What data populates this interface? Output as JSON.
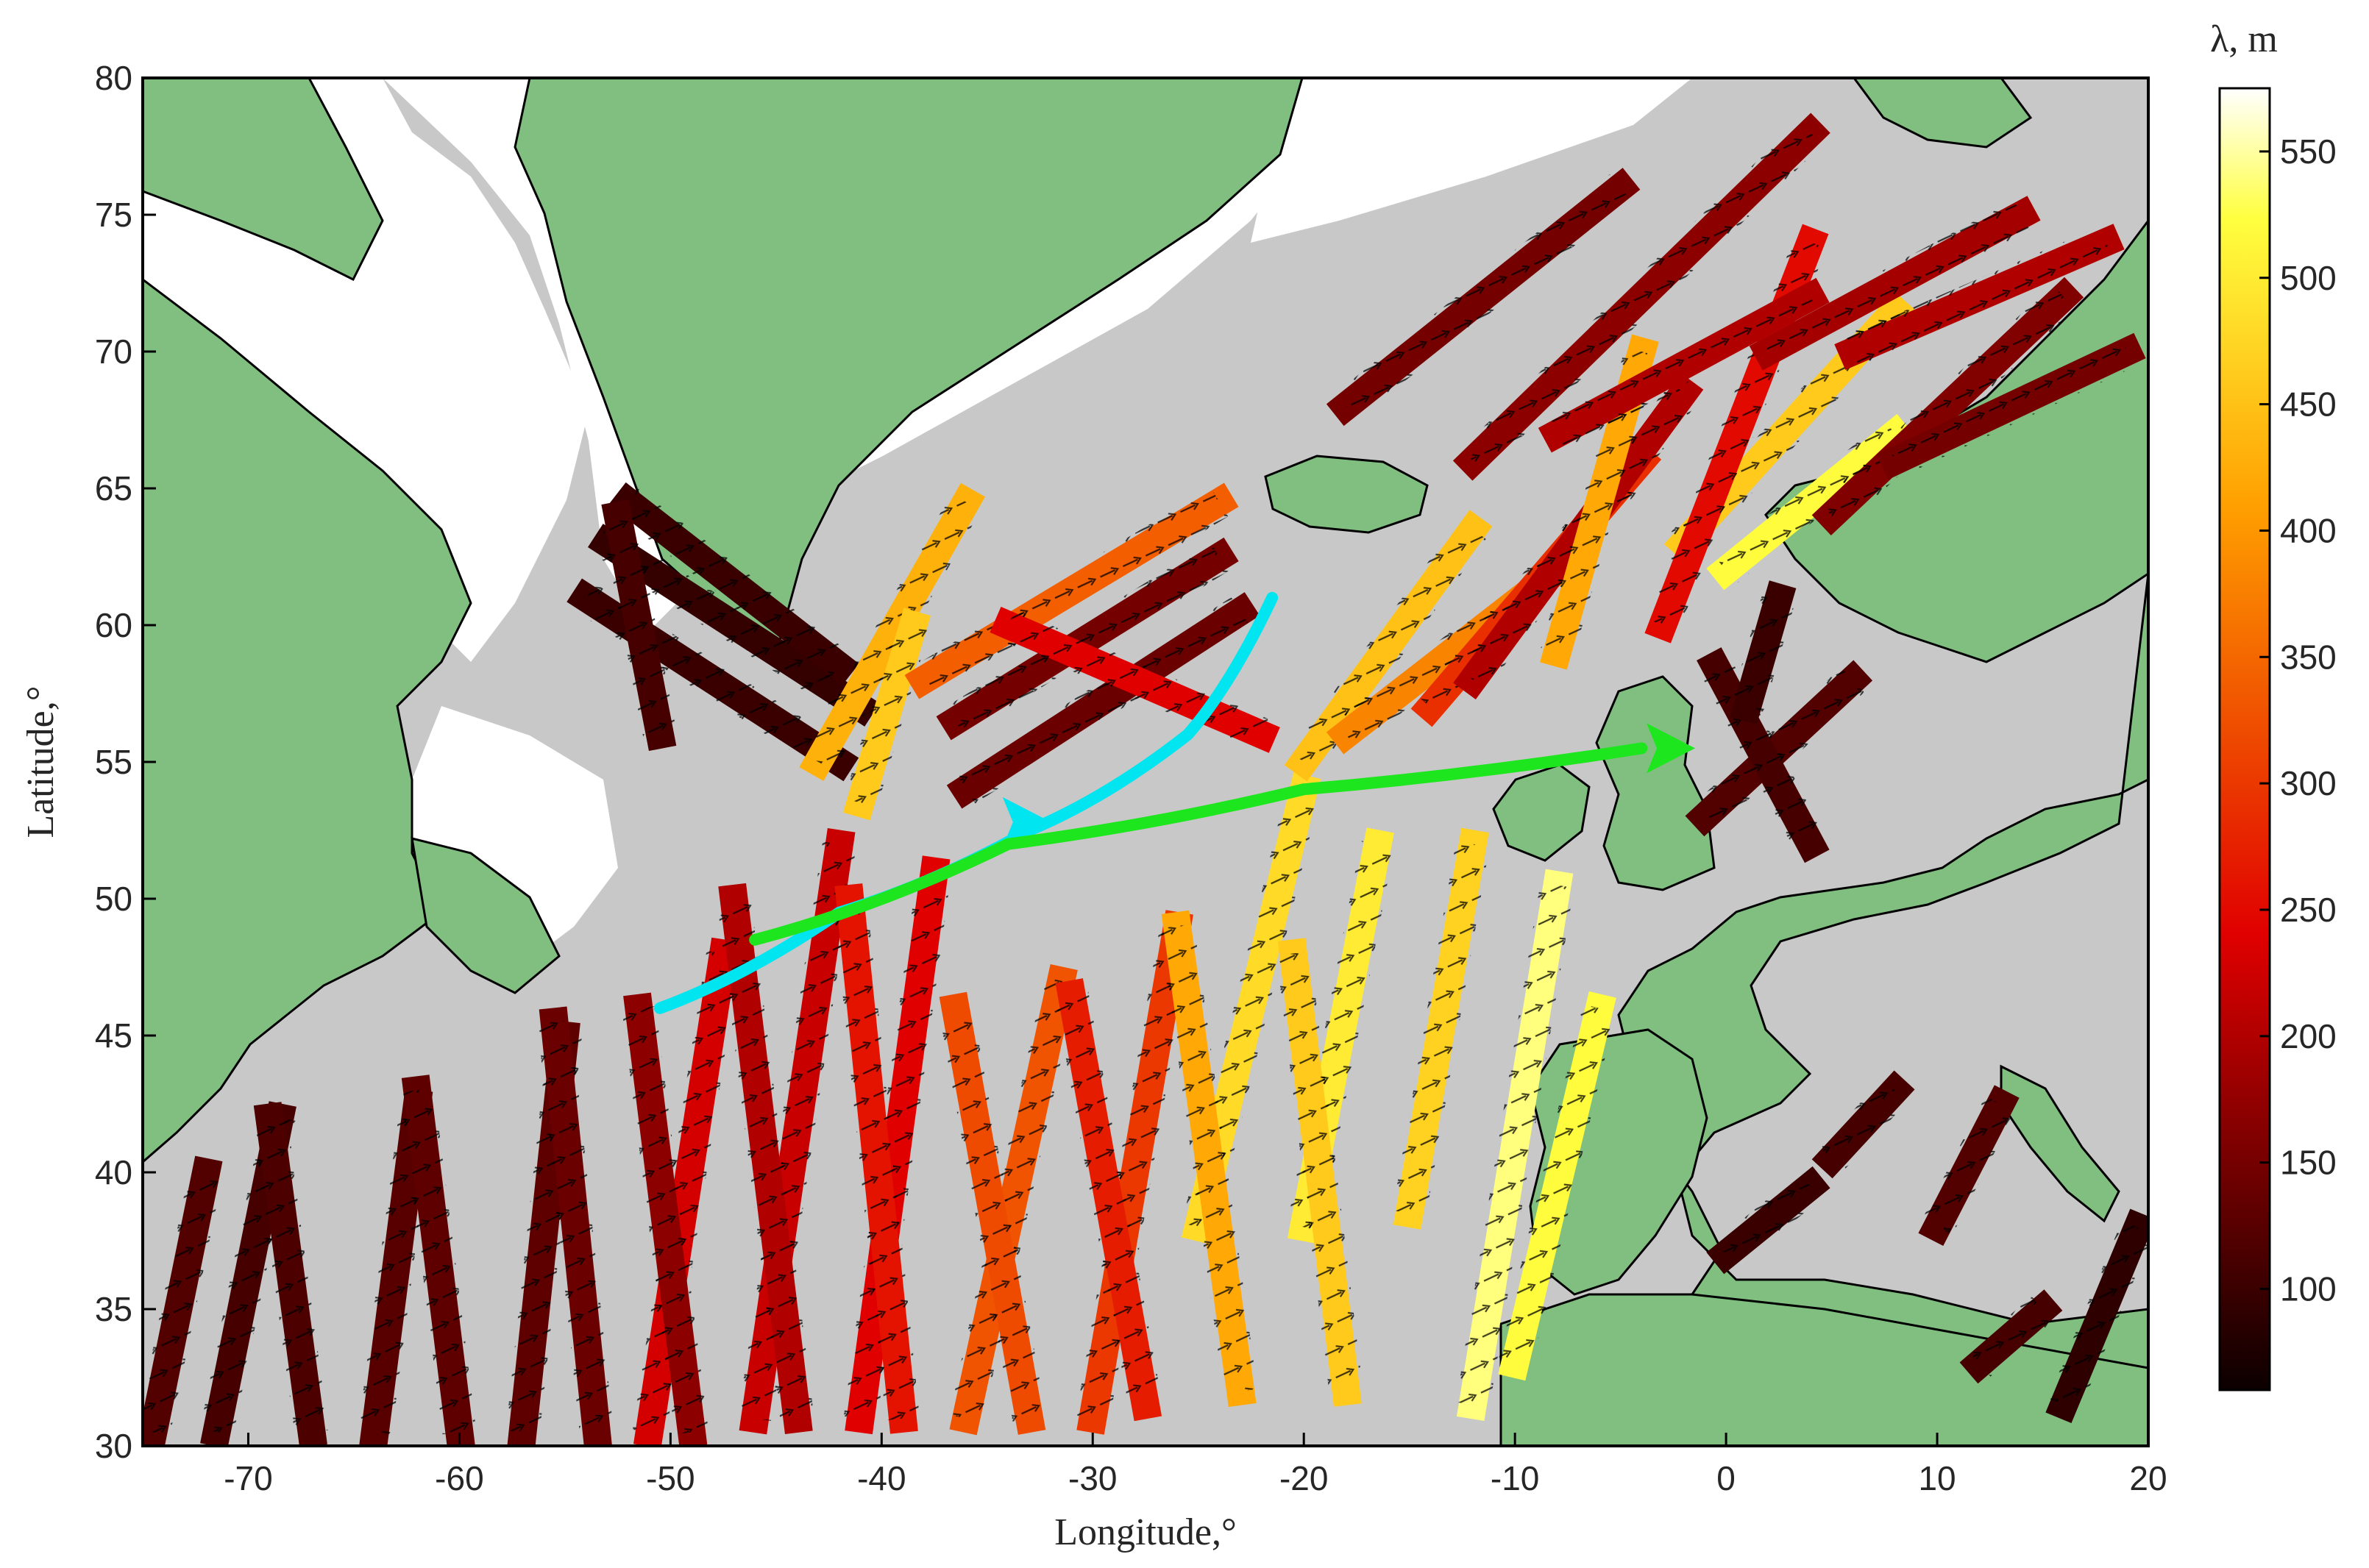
{
  "map": {
    "xlabel": "Longitude,°",
    "ylabel": "Latitude,°",
    "xlim": [
      -75,
      20
    ],
    "ylim": [
      30,
      80
    ],
    "xticks": [
      -70,
      -60,
      -50,
      -40,
      -30,
      -20,
      -10,
      0,
      10,
      20
    ],
    "yticks": [
      30,
      35,
      40,
      45,
      50,
      55,
      60,
      65,
      70,
      75,
      80
    ],
    "colors": {
      "land": "#80bf80",
      "ocean": "#c8c8c8",
      "ice": "#ffffff",
      "coast": "#000000",
      "arrow_cyan": "#00e5f0",
      "arrow_green": "#1ee61e"
    },
    "colorbar": {
      "title": "λ, m",
      "range": [
        60,
        575
      ],
      "ticks": [
        100,
        150,
        200,
        250,
        300,
        350,
        400,
        450,
        500,
        550
      ],
      "colormap": "hot"
    },
    "tracks": [
      {
        "from": [
          -74.5,
          30.5
        ],
        "to": [
          -72.0,
          40.0
        ],
        "value": 120
      },
      {
        "from": [
          -71.5,
          30.5
        ],
        "to": [
          -68.5,
          42.0
        ],
        "value": 110
      },
      {
        "from": [
          -67.0,
          30.5
        ],
        "to": [
          -69.0,
          42.0
        ],
        "value": 115
      },
      {
        "from": [
          -64.0,
          30.5
        ],
        "to": [
          -62.0,
          42.5
        ],
        "value": 125
      },
      {
        "from": [
          -60.0,
          30.5
        ],
        "to": [
          -62.0,
          43.0
        ],
        "value": 130
      },
      {
        "from": [
          -57.0,
          30.5
        ],
        "to": [
          -55.0,
          45.0
        ],
        "value": 130
      },
      {
        "from": [
          -53.5,
          30.5
        ],
        "to": [
          -55.5,
          45.5
        ],
        "value": 140
      },
      {
        "from": [
          -51.0,
          30.5
        ],
        "to": [
          -47.5,
          48.0
        ],
        "value": 230
      },
      {
        "from": [
          -49.0,
          30.5
        ],
        "to": [
          -51.5,
          46.0
        ],
        "value": 170
      },
      {
        "from": [
          -46.0,
          31.0
        ],
        "to": [
          -42.0,
          52.0
        ],
        "value": 220
      },
      {
        "from": [
          -44.0,
          31.0
        ],
        "to": [
          -47.0,
          50.0
        ],
        "value": 200
      },
      {
        "from": [
          -41.0,
          31.0
        ],
        "to": [
          -37.5,
          51.0
        ],
        "value": 240
      },
      {
        "from": [
          -39.0,
          31.0
        ],
        "to": [
          -41.5,
          50.0
        ],
        "value": 260
      },
      {
        "from": [
          -36.0,
          31.0
        ],
        "to": [
          -31.5,
          47.0
        ],
        "value": 330
      },
      {
        "from": [
          -33.0,
          31.0
        ],
        "to": [
          -36.5,
          46.0
        ],
        "value": 320
      },
      {
        "from": [
          -30.0,
          31.0
        ],
        "to": [
          -26.0,
          49.0
        ],
        "value": 300
      },
      {
        "from": [
          -27.5,
          31.5
        ],
        "to": [
          -31.0,
          46.5
        ],
        "value": 270
      },
      {
        "from": [
          -25.0,
          38.0
        ],
        "to": [
          -20.0,
          54.0
        ],
        "value": 480
      },
      {
        "from": [
          -23.0,
          32.0
        ],
        "to": [
          -26.0,
          49.0
        ],
        "value": 420
      },
      {
        "from": [
          -20.0,
          38.0
        ],
        "to": [
          -16.5,
          52.0
        ],
        "value": 500
      },
      {
        "from": [
          -18.0,
          32.0
        ],
        "to": [
          -20.5,
          48.0
        ],
        "value": 460
      },
      {
        "from": [
          -15.0,
          38.5
        ],
        "to": [
          -12.0,
          52.0
        ],
        "value": 470
      },
      {
        "from": [
          -12.0,
          31.5
        ],
        "to": [
          -8.0,
          50.5
        ],
        "value": 540
      },
      {
        "from": [
          -10.0,
          33.0
        ],
        "to": [
          -6.0,
          46.0
        ],
        "value": 520
      },
      {
        "from": [
          -54.0,
          61.0
        ],
        "to": [
          -42.0,
          55.0
        ],
        "value": 100
      },
      {
        "from": [
          -53.0,
          63.0
        ],
        "to": [
          -41.0,
          57.0
        ],
        "value": 95
      },
      {
        "from": [
          -52.0,
          64.5
        ],
        "to": [
          -42.0,
          58.5
        ],
        "value": 100
      },
      {
        "from": [
          -50.5,
          56.0
        ],
        "to": [
          -52.5,
          64.0
        ],
        "value": 110
      },
      {
        "from": [
          -43.0,
          55.0
        ],
        "to": [
          -36.0,
          64.5
        ],
        "value": 430
      },
      {
        "from": [
          -41.0,
          53.5
        ],
        "to": [
          -38.5,
          60.0
        ],
        "value": 460
      },
      {
        "from": [
          -38.0,
          58.0
        ],
        "to": [
          -24.0,
          64.5
        ],
        "value": 340
      },
      {
        "from": [
          -36.5,
          56.5
        ],
        "to": [
          -24.0,
          62.5
        ],
        "value": 150
      },
      {
        "from": [
          -36.0,
          54.0
        ],
        "to": [
          -23.0,
          60.5
        ],
        "value": 140
      },
      {
        "from": [
          -34.0,
          60.0
        ],
        "to": [
          -22.0,
          56.0
        ],
        "value": 240
      },
      {
        "from": [
          -20.0,
          55.0
        ],
        "to": [
          -12.0,
          63.5
        ],
        "value": 450
      },
      {
        "from": [
          -18.0,
          56.0
        ],
        "to": [
          -8.0,
          62.0
        ],
        "value": 380
      },
      {
        "from": [
          -14.0,
          57.0
        ],
        "to": [
          -4.0,
          66.0
        ],
        "value": 290
      },
      {
        "from": [
          -12.0,
          58.0
        ],
        "to": [
          -2.0,
          68.5
        ],
        "value": 200
      },
      {
        "from": [
          -8.0,
          59.0
        ],
        "to": [
          -4.0,
          70.0
        ],
        "value": 420
      },
      {
        "from": [
          -2.0,
          63.0
        ],
        "to": [
          8.0,
          71.5
        ],
        "value": 460
      },
      {
        "from": [
          -3.0,
          60.0
        ],
        "to": [
          4.0,
          74.0
        ],
        "value": 250
      },
      {
        "from": [
          0.0,
          62.0
        ],
        "to": [
          8.0,
          67.0
        ],
        "value": 520
      },
      {
        "from": [
          2.0,
          70.0
        ],
        "to": [
          14.0,
          75.0
        ],
        "value": 190
      },
      {
        "from": [
          -12.0,
          66.0
        ],
        "to": [
          4.0,
          78.0
        ],
        "value": 170
      },
      {
        "from": [
          -8.0,
          67.0
        ],
        "to": [
          4.0,
          72.0
        ],
        "value": 200
      },
      {
        "from": [
          5.0,
          64.0
        ],
        "to": [
          16.0,
          72.0
        ],
        "value": 160
      },
      {
        "from": [
          6.0,
          70.0
        ],
        "to": [
          18.0,
          74.0
        ],
        "value": 200
      },
      {
        "from": [
          8.0,
          66.0
        ],
        "to": [
          19.0,
          70.0
        ],
        "value": 150
      },
      {
        "from": [
          -18.0,
          68.0
        ],
        "to": [
          -5.0,
          76.0
        ],
        "value": 150
      },
      {
        "from": [
          -1.0,
          53.0
        ],
        "to": [
          6.0,
          58.0
        ],
        "value": 120
      },
      {
        "from": [
          -0.5,
          58.5
        ],
        "to": [
          4.0,
          52.0
        ],
        "value": 110
      },
      {
        "from": [
          1.0,
          57.0
        ],
        "to": [
          2.5,
          61.0
        ],
        "value": 100
      },
      {
        "from": [
          5.0,
          40.5
        ],
        "to": [
          8.0,
          43.0
        ],
        "value": 110
      },
      {
        "from": [
          10.0,
          38.0
        ],
        "to": [
          13.0,
          42.5
        ],
        "value": 120
      },
      {
        "from": [
          16.0,
          31.5
        ],
        "to": [
          19.5,
          38.0
        ],
        "value": 90
      },
      {
        "from": [
          12.0,
          33.0
        ],
        "to": [
          15.0,
          35.0
        ],
        "value": 110
      },
      {
        "from": [
          0.0,
          37.0
        ],
        "to": [
          4.0,
          39.5
        ],
        "value": 100
      }
    ],
    "ship_tracks": [
      {
        "color_key": "arrow_cyan",
        "points": [
          [
            -50.5,
            46.0
          ],
          [
            -42.0,
            49.5
          ],
          [
            -33.0,
            52.5
          ],
          [
            -25.5,
            56.0
          ],
          [
            -21.5,
            61.0
          ]
        ],
        "arrow_at": [
          -33.5,
          52.8
        ]
      },
      {
        "color_key": "arrow_green",
        "points": [
          [
            -46.0,
            48.5
          ],
          [
            -34.0,
            52.0
          ],
          [
            -20.0,
            54.0
          ],
          [
            -4.0,
            55.5
          ]
        ],
        "arrow_at": [
          -3.0,
          55.5
        ]
      }
    ]
  }
}
